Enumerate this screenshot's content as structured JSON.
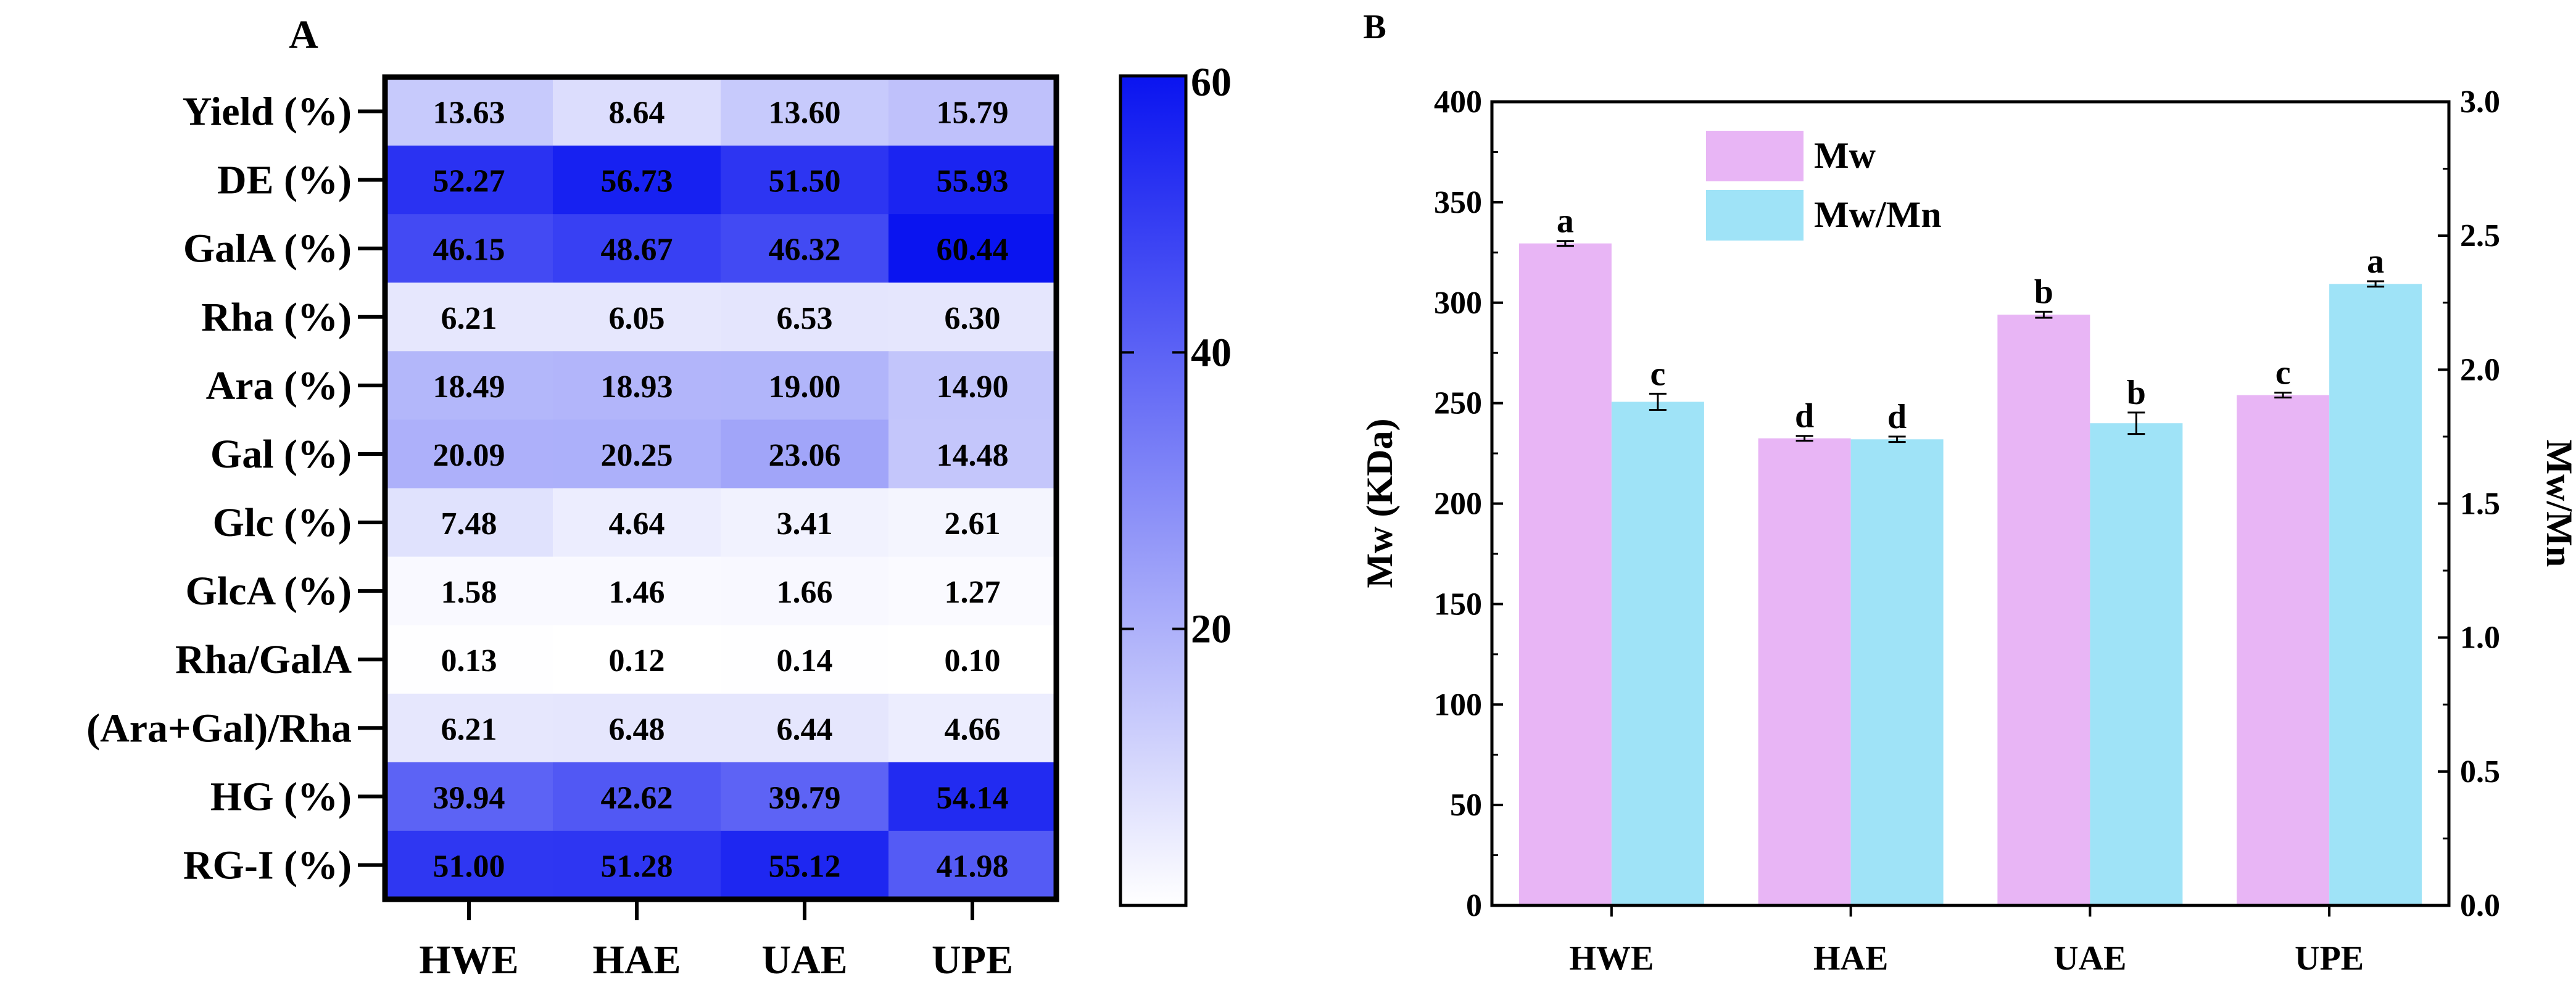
{
  "chart_data": [
    {
      "type": "heatmap",
      "panel_label": "A",
      "rows": [
        "Yield (%)",
        "DE (%)",
        "GalA (%)",
        "Rha (%)",
        "Ara (%)",
        "Gal (%)",
        "Glc (%)",
        "GlcA (%)",
        "Rha/GalA",
        "(Ara+Gal)/Rha",
        "HG (%)",
        "RG-I (%)"
      ],
      "columns": [
        "HWE",
        "HAE",
        "UAE",
        "UPE"
      ],
      "values": [
        [
          13.63,
          8.64,
          13.6,
          15.79
        ],
        [
          52.27,
          56.73,
          51.5,
          55.93
        ],
        [
          46.15,
          48.67,
          46.32,
          60.44
        ],
        [
          6.21,
          6.05,
          6.53,
          6.3
        ],
        [
          18.49,
          18.93,
          19.0,
          14.9
        ],
        [
          20.09,
          20.25,
          23.06,
          14.48
        ],
        [
          7.48,
          4.64,
          3.41,
          2.61
        ],
        [
          1.58,
          1.46,
          1.66,
          1.27
        ],
        [
          0.13,
          0.12,
          0.14,
          0.1
        ],
        [
          6.21,
          6.48,
          6.44,
          4.66
        ],
        [
          39.94,
          42.62,
          39.79,
          54.14
        ],
        [
          51.0,
          51.28,
          55.12,
          41.98
        ]
      ],
      "colorbar": {
        "min": 0,
        "max": 60,
        "ticks": [
          20,
          40,
          60
        ],
        "color_low": "#ffffff",
        "color_high": "#0a14f0"
      }
    },
    {
      "type": "bar",
      "panel_label": "B",
      "categories": [
        "HWE",
        "HAE",
        "UAE",
        "UPE"
      ],
      "series": [
        {
          "name": "Mw",
          "axis": "left",
          "color": "#e8b5f5",
          "values": [
            329.5,
            232.5,
            294,
            254
          ],
          "errors": [
            1.2,
            1.2,
            1.5,
            1.2
          ],
          "letters": [
            "a",
            "d",
            "b",
            "c"
          ]
        },
        {
          "name": "Mw/Mn",
          "axis": "right",
          "color": "#9fe3f7",
          "values": [
            1.88,
            1.74,
            1.8,
            2.32
          ],
          "errors": [
            0.03,
            0.01,
            0.04,
            0.01
          ],
          "letters": [
            "c",
            "d",
            "b",
            "a"
          ]
        }
      ],
      "ylabel": "Mw (KDa)",
      "y2label": "Mw/Mn",
      "ylim": [
        0,
        400
      ],
      "y2lim": [
        0,
        3.0
      ],
      "yticks": [
        "0",
        "50",
        "100",
        "150",
        "200",
        "250",
        "300",
        "350",
        "400"
      ],
      "y2ticks": [
        "0.0",
        "0.5",
        "1.0",
        "1.5",
        "2.0",
        "2.5",
        "3.0"
      ],
      "legend_position": "top-center"
    }
  ]
}
